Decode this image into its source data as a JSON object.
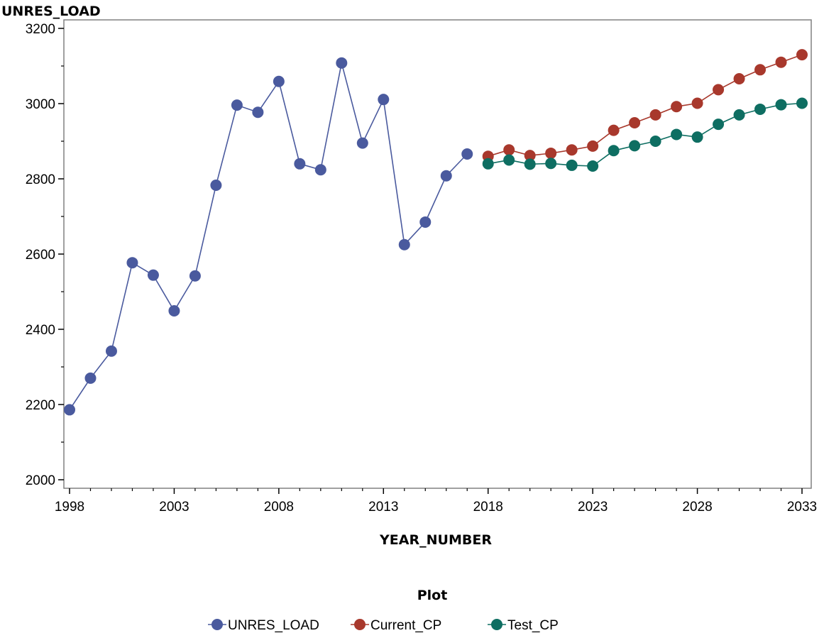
{
  "chart_data": {
    "type": "line",
    "ylabel": "UNRES_LOAD",
    "xlabel": "YEAR_NUMBER",
    "xlim": [
      1998,
      2033
    ],
    "ylim": [
      2000,
      3200
    ],
    "x_ticks": [
      "1998",
      "2003",
      "2008",
      "2013",
      "2018",
      "2023",
      "2028",
      "2033"
    ],
    "y_ticks": [
      "2000",
      "2200",
      "2400",
      "2600",
      "2800",
      "3000",
      "3200"
    ],
    "legend_title": "Plot",
    "legend_position": "bottom",
    "series": [
      {
        "name": "UNRES_LOAD",
        "color": "#4a5a9e",
        "x": [
          1998,
          1999,
          2000,
          2001,
          2002,
          2003,
          2004,
          2005,
          2006,
          2007,
          2008,
          2009,
          2010,
          2011,
          2012,
          2013,
          2014,
          2015,
          2016,
          2017
        ],
        "values": [
          2186,
          2270,
          2342,
          2577,
          2544,
          2449,
          2542,
          2783,
          2996,
          2977,
          3059,
          2840,
          2824,
          3108,
          2895,
          3011,
          2625,
          2685,
          2808,
          2866
        ]
      },
      {
        "name": "Current_CP",
        "color": "#a8382c",
        "x": [
          2018,
          2019,
          2020,
          2021,
          2022,
          2023,
          2024,
          2025,
          2026,
          2027,
          2028,
          2029,
          2030,
          2031,
          2032,
          2033
        ],
        "values": [
          2860,
          2877,
          2862,
          2868,
          2877,
          2887,
          2929,
          2949,
          2970,
          2992,
          3001,
          3037,
          3066,
          3090,
          3110,
          3130
        ]
      },
      {
        "name": "Test_CP",
        "color": "#0e6e62",
        "x": [
          2018,
          2019,
          2020,
          2021,
          2022,
          2023,
          2024,
          2025,
          2026,
          2027,
          2028,
          2029,
          2030,
          2031,
          2032,
          2033
        ],
        "values": [
          2840,
          2850,
          2839,
          2841,
          2836,
          2834,
          2875,
          2888,
          2900,
          2918,
          2911,
          2945,
          2970,
          2985,
          2997,
          3001
        ]
      }
    ]
  }
}
